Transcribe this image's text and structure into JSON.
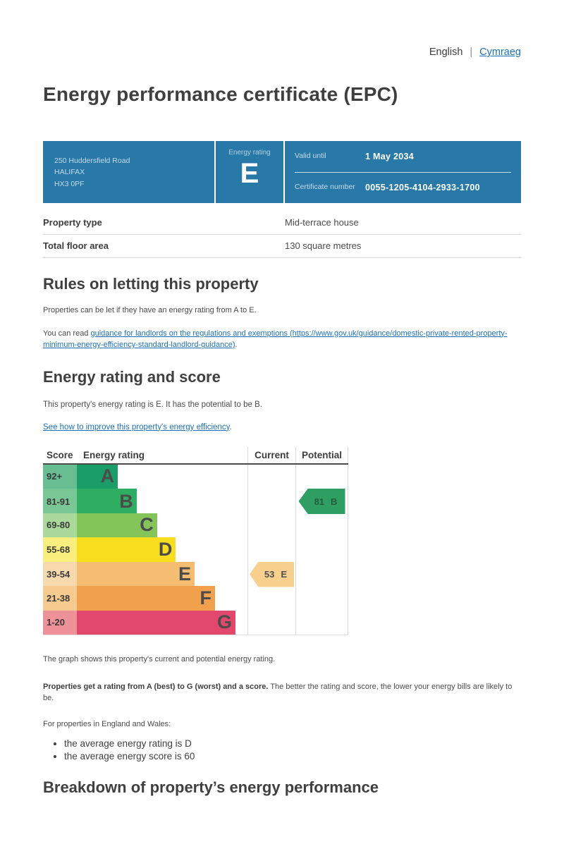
{
  "language_bar": {
    "current": "English",
    "separator": "|",
    "other": "Cymraeg"
  },
  "page_title": "Energy performance certificate (EPC)",
  "banner": {
    "address_lines": [
      "250 Huddersfield Road",
      "HALIFAX",
      "HX3 0PF"
    ],
    "energy_rating_label": "Energy rating",
    "energy_rating_value": "E",
    "valid_until_label": "Valid until",
    "valid_until_value": "1 May 2034",
    "certificate_number_label": "Certificate number",
    "certificate_number_value": "0055-1205-4104-2933-1700"
  },
  "property_summary": {
    "rows": [
      {
        "label": "Property type",
        "value": "Mid-terrace house"
      },
      {
        "label": "Total floor area",
        "value": "130 square metres"
      }
    ]
  },
  "rules_section": {
    "heading": "Rules on letting this property",
    "paragraph1": "Properties can be let if they have an energy rating from A to E.",
    "paragraph2_prefix": "You can read ",
    "paragraph2_link": "guidance for landlords on the regulations and exemptions (https://www.gov.uk/guidance/domestic-private-rented-property-minimum-energy-efficiency-standard-landlord-guidance)",
    "paragraph2_suffix": "."
  },
  "rating_section": {
    "heading": "Energy rating and score",
    "summary": "This property's energy rating is E. It has the potential to be B.",
    "improve_link": "See how to improve this property's energy efficiency",
    "improve_suffix": "."
  },
  "chart_data": {
    "type": "bar",
    "columns": [
      "Score",
      "Energy rating",
      "Current",
      "Potential"
    ],
    "bands": [
      {
        "score_range": "92+",
        "letter": "A",
        "bar_color": "#1a9d67",
        "cell_color": "#68bd92",
        "bar_width_pct": 24
      },
      {
        "score_range": "81-91",
        "letter": "B",
        "bar_color": "#2fae62",
        "cell_color": "#79c795",
        "bar_width_pct": 35
      },
      {
        "score_range": "69-80",
        "letter": "C",
        "bar_color": "#84c559",
        "cell_color": "#abd99c",
        "bar_width_pct": 47
      },
      {
        "score_range": "55-68",
        "letter": "D",
        "bar_color": "#f9dd1f",
        "cell_color": "#faee7e",
        "bar_width_pct": 58
      },
      {
        "score_range": "39-54",
        "letter": "E",
        "bar_color": "#f5bd72",
        "cell_color": "#f8d9ae",
        "bar_width_pct": 69
      },
      {
        "score_range": "21-38",
        "letter": "F",
        "bar_color": "#f1a14b",
        "cell_color": "#f7ca90",
        "bar_width_pct": 81
      },
      {
        "score_range": "1-20",
        "letter": "G",
        "bar_color": "#e1486c",
        "cell_color": "#ef9199",
        "bar_width_pct": 93
      }
    ],
    "current": {
      "score": "53",
      "letter": "E",
      "row_index": 4,
      "color": "#f8cf8d"
    },
    "potential": {
      "score": "81",
      "letter": "B",
      "row_index": 1,
      "color": "#2f9e63"
    },
    "caption": "The graph shows this property's current and potential energy rating."
  },
  "explanation": {
    "bold": "Properties get a rating from A (best) to G (worst) and a score.",
    "rest": " The better the rating and score, the lower your energy bills are likely to be.",
    "intro": "For properties in England and Wales:",
    "bullets": [
      "the average energy rating is D",
      "the average energy score is 60"
    ]
  },
  "breakdown_heading": "Breakdown of property’s energy performance"
}
